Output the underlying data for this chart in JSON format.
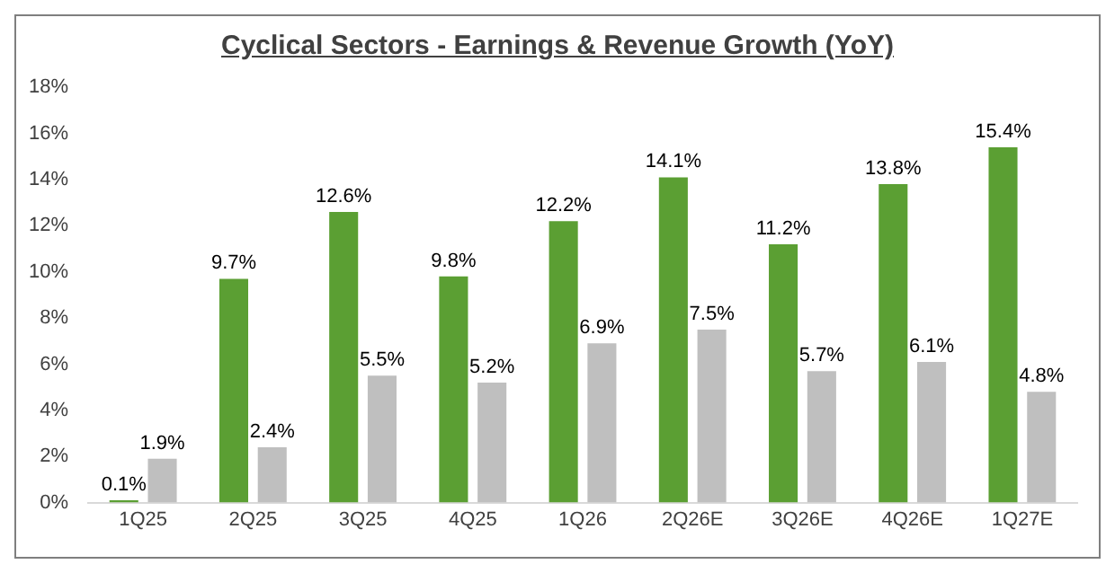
{
  "chart_data": {
    "type": "bar",
    "title": "Cyclical Sectors - Earnings & Revenue Growth (YoY)",
    "categories": [
      "1Q25",
      "2Q25",
      "3Q25",
      "4Q25",
      "1Q26",
      "2Q26E",
      "3Q26E",
      "4Q26E",
      "1Q27E"
    ],
    "series": [
      {
        "color": "#5b9f33",
        "values": [
          0.1,
          9.7,
          12.6,
          9.8,
          12.2,
          14.1,
          11.2,
          13.8,
          15.4
        ],
        "value_labels": [
          "0.1%",
          "9.7%",
          "12.6%",
          "9.8%",
          "12.2%",
          "14.1%",
          "11.2%",
          "13.8%",
          "15.4%"
        ]
      },
      {
        "color": "#bfbfbf",
        "values": [
          1.9,
          2.4,
          5.5,
          5.2,
          6.9,
          7.5,
          5.7,
          6.1,
          4.8
        ],
        "value_labels": [
          "1.9%",
          "2.4%",
          "5.5%",
          "5.2%",
          "6.9%",
          "7.5%",
          "5.7%",
          "6.1%",
          "4.8%"
        ]
      }
    ],
    "ylim": [
      0,
      18
    ],
    "yticks": [
      {
        "value": 0,
        "label": "0%"
      },
      {
        "value": 2,
        "label": "2%"
      },
      {
        "value": 4,
        "label": "4%"
      },
      {
        "value": 6,
        "label": "6%"
      },
      {
        "value": 8,
        "label": "8%"
      },
      {
        "value": 10,
        "label": "10%"
      },
      {
        "value": 12,
        "label": "12%"
      },
      {
        "value": 14,
        "label": "14%"
      },
      {
        "value": 16,
        "label": "16%"
      },
      {
        "value": 18,
        "label": "18%"
      }
    ],
    "grid": false,
    "legend": false
  }
}
